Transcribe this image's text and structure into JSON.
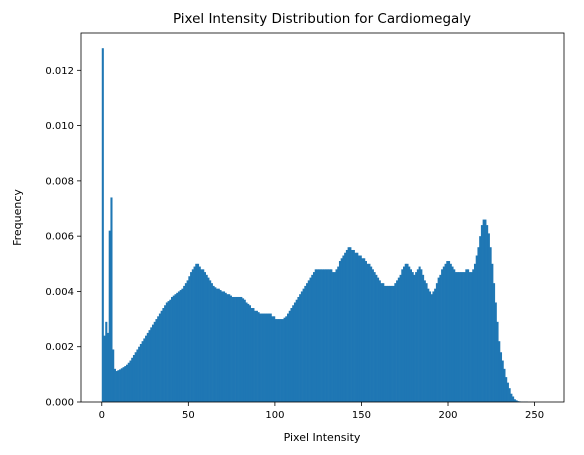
{
  "chart_data": {
    "type": "bar",
    "title": "Pixel Intensity Distribution for Cardiomegaly",
    "xlabel": "Pixel Intensity",
    "ylabel": "Frequency",
    "xlim": [
      -12,
      267
    ],
    "ylim": [
      0,
      0.01335
    ],
    "x_ticks": [
      0,
      50,
      100,
      150,
      200,
      250
    ],
    "y_ticks": [
      0.0,
      0.002,
      0.004,
      0.006,
      0.008,
      0.01,
      0.012
    ],
    "y_tick_labels": [
      "0.000",
      "0.002",
      "0.004",
      "0.006",
      "0.008",
      "0.010",
      "0.012"
    ],
    "bar_color": "#1f77b4",
    "grid": false,
    "legend": "none",
    "bin_width": 1,
    "bin_start": 0,
    "values": [
      0.0128,
      0.0024,
      0.0029,
      0.0025,
      0.0062,
      0.0074,
      0.0019,
      0.0012,
      0.00112,
      0.00115,
      0.00118,
      0.00122,
      0.00126,
      0.0013,
      0.00135,
      0.00142,
      0.0015,
      0.0016,
      0.0017,
      0.0018,
      0.0019,
      0.002,
      0.0021,
      0.0022,
      0.0023,
      0.0024,
      0.0025,
      0.0026,
      0.0027,
      0.0028,
      0.0029,
      0.003,
      0.0031,
      0.0032,
      0.0033,
      0.0034,
      0.0035,
      0.0036,
      0.00365,
      0.0037,
      0.0038,
      0.00385,
      0.0039,
      0.00395,
      0.004,
      0.00405,
      0.0041,
      0.0042,
      0.0043,
      0.0044,
      0.00455,
      0.0047,
      0.0048,
      0.0049,
      0.005,
      0.005,
      0.0049,
      0.0048,
      0.0048,
      0.0047,
      0.0046,
      0.0045,
      0.0044,
      0.0043,
      0.0042,
      0.00415,
      0.0041,
      0.0041,
      0.00405,
      0.004,
      0.004,
      0.00395,
      0.0039,
      0.0039,
      0.00385,
      0.0038,
      0.0038,
      0.0038,
      0.0038,
      0.0038,
      0.0038,
      0.00375,
      0.0037,
      0.0036,
      0.00355,
      0.0035,
      0.0034,
      0.0034,
      0.0033,
      0.0033,
      0.00325,
      0.0032,
      0.0032,
      0.0032,
      0.0032,
      0.0032,
      0.0032,
      0.0032,
      0.0031,
      0.0031,
      0.003,
      0.003,
      0.003,
      0.003,
      0.003,
      0.00305,
      0.0031,
      0.0032,
      0.0033,
      0.0034,
      0.0035,
      0.0036,
      0.0037,
      0.0038,
      0.0039,
      0.004,
      0.0041,
      0.0042,
      0.0043,
      0.0044,
      0.0045,
      0.0046,
      0.0047,
      0.0048,
      0.0048,
      0.0048,
      0.0048,
      0.0048,
      0.0048,
      0.0048,
      0.0048,
      0.0048,
      0.0048,
      0.0047,
      0.0047,
      0.0048,
      0.0049,
      0.0051,
      0.0052,
      0.0053,
      0.0054,
      0.0055,
      0.0056,
      0.0056,
      0.0055,
      0.0055,
      0.0054,
      0.0054,
      0.0053,
      0.0053,
      0.0052,
      0.0052,
      0.0051,
      0.005,
      0.005,
      0.0049,
      0.0048,
      0.0047,
      0.0046,
      0.0045,
      0.0044,
      0.0043,
      0.0043,
      0.0042,
      0.0042,
      0.0042,
      0.0042,
      0.0042,
      0.0042,
      0.0043,
      0.0044,
      0.0045,
      0.0046,
      0.0048,
      0.0049,
      0.005,
      0.005,
      0.0049,
      0.0048,
      0.0047,
      0.0046,
      0.0047,
      0.0048,
      0.0049,
      0.0048,
      0.0046,
      0.0044,
      0.0043,
      0.0041,
      0.004,
      0.0039,
      0.004,
      0.0041,
      0.0043,
      0.0045,
      0.0046,
      0.0048,
      0.0049,
      0.005,
      0.0051,
      0.0051,
      0.005,
      0.0049,
      0.0048,
      0.0047,
      0.0047,
      0.0047,
      0.0047,
      0.0047,
      0.0047,
      0.0048,
      0.0048,
      0.0047,
      0.0047,
      0.0048,
      0.005,
      0.0053,
      0.0056,
      0.006,
      0.0064,
      0.0066,
      0.0066,
      0.0064,
      0.0061,
      0.0056,
      0.005,
      0.0043,
      0.0036,
      0.0029,
      0.0022,
      0.0018,
      0.0015,
      0.0012,
      0.0009,
      0.0007,
      0.0005,
      0.0003,
      0.0002,
      0.0001,
      6e-05,
      3e-05,
      2e-05,
      1e-05,
      1e-05,
      1e-05,
      1e-05
    ]
  }
}
